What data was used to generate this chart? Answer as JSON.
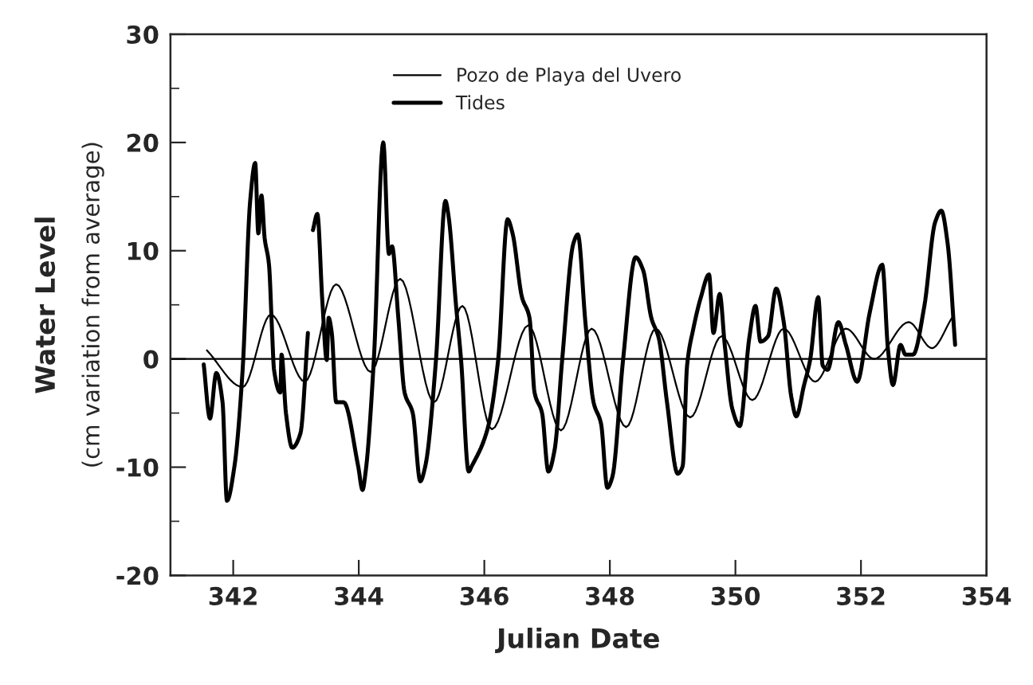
{
  "chart_data": {
    "type": "line",
    "xlabel": "Julian Date",
    "ylabel": "Water Level\n(cm variation from average)",
    "xlim": [
      341,
      354
    ],
    "xticks": [
      342,
      344,
      346,
      348,
      350,
      352,
      354
    ],
    "ylim": [
      -20,
      30
    ],
    "yticks": [
      -20,
      {
        "value": -15,
        "label": null
      },
      -10,
      {
        "value": -5,
        "label": null
      },
      0,
      {
        "value": 5,
        "label": null
      },
      10,
      {
        "value": 15,
        "label": null
      },
      20,
      {
        "value": 25,
        "label": null
      },
      30
    ],
    "grid": false,
    "legend": "top",
    "marker": "none",
    "line_style": "solid",
    "ref_lines": [
      {
        "axis": "y",
        "value": 0,
        "color": "#000000"
      }
    ],
    "series": [
      {
        "name": "Pozo de Playa del Uvero",
        "color": "#000000",
        "x": [
          341.58,
          342.15,
          342.6,
          343.14,
          343.64,
          344.19,
          344.66,
          345.2,
          345.65,
          346.12,
          346.7,
          347.22,
          347.71,
          348.26,
          348.73,
          349.28,
          349.78,
          350.27,
          350.77,
          351.27,
          351.76,
          352.21,
          352.76,
          353.13,
          353.45
        ],
        "values": [
          0.8,
          -2.6,
          4.1,
          -2.1,
          6.9,
          -1.2,
          7.4,
          -4.0,
          4.9,
          -6.5,
          3.1,
          -6.6,
          2.8,
          -6.3,
          2.8,
          -5.4,
          2.1,
          -3.8,
          2.8,
          -2.1,
          2.8,
          0.0,
          3.4,
          1.0,
          3.8
        ]
      },
      {
        "name": "Tides",
        "color": "#000000",
        "x": [
          341.53,
          341.63,
          341.73,
          341.83,
          341.9,
          342.02,
          342.15,
          342.27,
          342.35,
          342.4,
          342.45,
          342.5,
          342.57,
          342.62,
          342.65,
          342.75,
          342.77,
          342.84,
          342.94,
          343.07,
          343.19,
          343.23,
          343.27,
          343.34,
          343.42,
          343.49,
          343.52,
          343.57,
          343.64,
          343.76,
          343.99,
          344.06,
          344.11,
          344.24,
          344.39,
          344.48,
          344.53,
          344.63,
          344.73,
          344.86,
          344.98,
          345.06,
          345.23,
          345.38,
          345.43,
          345.55,
          345.63,
          345.75,
          345.8,
          346.05,
          346.22,
          346.37,
          346.45,
          346.6,
          346.72,
          346.8,
          346.92,
          347.02,
          347.12,
          347.24,
          347.42,
          347.49,
          347.61,
          347.74,
          347.86,
          347.96,
          348.04,
          348.21,
          348.41,
          348.53,
          348.66,
          348.78,
          348.91,
          349.08,
          349.16,
          349.23,
          349.33,
          349.45,
          349.58,
          349.65,
          349.75,
          349.83,
          349.95,
          350.07,
          350.22,
          350.32,
          350.4,
          350.52,
          350.65,
          350.77,
          350.89,
          350.97,
          351.09,
          351.19,
          351.32,
          351.39,
          351.47,
          351.64,
          351.76,
          351.94,
          352.14,
          352.34,
          352.43,
          352.51,
          352.63,
          352.71,
          352.83,
          353.01,
          353.18,
          353.28,
          353.38,
          353.5
        ],
        "values": [
          -0.5,
          -5.5,
          -1.3,
          -4.0,
          -13.1,
          -9.9,
          -1.0,
          14.6,
          18.1,
          11.6,
          15.1,
          11.2,
          8.7,
          2.4,
          -1.0,
          -3.1,
          0.4,
          -5.0,
          -8.2,
          -6.9,
          2.4,
          null,
          11.9,
          13.4,
          5.3,
          -0.1,
          3.8,
          2.4,
          -4.0,
          -4.0,
          -9.9,
          -12.1,
          -10.4,
          -0.1,
          20.0,
          9.7,
          10.4,
          3.8,
          -3.1,
          -5.0,
          -11.3,
          -9.9,
          -0.1,
          14.6,
          13.2,
          4.9,
          -0.1,
          -10.4,
          -9.9,
          -6.5,
          -0.1,
          12.9,
          11.6,
          5.7,
          3.8,
          -3.1,
          -5.0,
          -10.4,
          -8.4,
          -0.1,
          10.7,
          11.5,
          3.4,
          -4.0,
          -6.0,
          -11.9,
          -10.9,
          -0.1,
          9.4,
          8.2,
          3.8,
          1.9,
          -4.0,
          -10.6,
          -9.9,
          -0.6,
          2.8,
          5.7,
          7.8,
          2.4,
          6.0,
          1.3,
          -4.6,
          -6.2,
          1.9,
          4.9,
          1.6,
          2.1,
          6.5,
          3.4,
          -3.5,
          -5.3,
          -2.5,
          -0.1,
          5.7,
          -0.6,
          -1.0,
          3.4,
          1.3,
          -2.1,
          4.3,
          8.7,
          0.9,
          -2.4,
          1.3,
          0.4,
          0.4,
          4.9,
          12.6,
          13.7,
          10.7,
          1.3
        ]
      }
    ]
  }
}
